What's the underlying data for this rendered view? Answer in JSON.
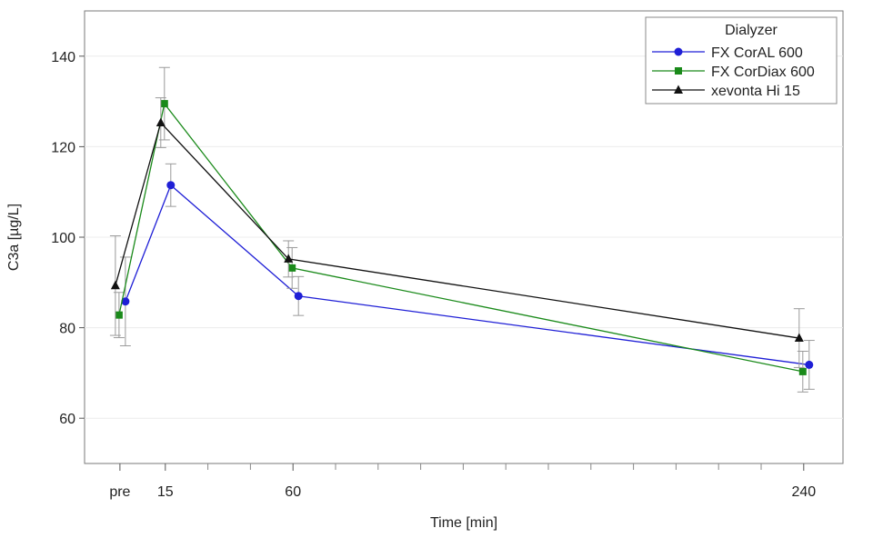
{
  "chart_data": {
    "type": "line",
    "xlabel": "Time [min]",
    "ylabel": "C3a [µg/L]",
    "x_ticks": [
      {
        "label": "pre",
        "value": "pre"
      },
      {
        "label": "15",
        "value": 15
      },
      {
        "label": "60",
        "value": 60
      },
      {
        "label": "240",
        "value": 240
      }
    ],
    "ylim": [
      50,
      150
    ],
    "y_ticks": [
      60,
      80,
      100,
      120,
      140
    ],
    "grid": "horizontal",
    "legend": {
      "title": "Dialyzer",
      "position": "top-right"
    },
    "series": [
      {
        "name": "FX CorAL 600",
        "color": "#1f1fd6",
        "marker": "circle",
        "points": [
          {
            "x": "pre",
            "y": 85.8,
            "err": 9.8
          },
          {
            "x": 15,
            "y": 111.5,
            "err": 4.7
          },
          {
            "x": 60,
            "y": 87.0,
            "err": 4.3
          },
          {
            "x": 240,
            "y": 71.8,
            "err": 5.4
          }
        ]
      },
      {
        "name": "FX CorDiax 600",
        "color": "#1a8a1a",
        "marker": "square",
        "points": [
          {
            "x": "pre",
            "y": 82.8,
            "err": 5.0
          },
          {
            "x": 15,
            "y": 129.5,
            "err": 8.0
          },
          {
            "x": 60,
            "y": 93.2,
            "err": 4.5
          },
          {
            "x": 240,
            "y": 70.3,
            "err": 4.5
          }
        ]
      },
      {
        "name": "xevonta Hi 15",
        "color": "#111111",
        "marker": "triangle",
        "points": [
          {
            "x": "pre",
            "y": 89.3,
            "err": 11.0
          },
          {
            "x": 15,
            "y": 125.3,
            "err": 5.5
          },
          {
            "x": 60,
            "y": 95.2,
            "err": 4.0
          },
          {
            "x": 240,
            "y": 77.7,
            "err": 6.5
          }
        ]
      }
    ]
  }
}
